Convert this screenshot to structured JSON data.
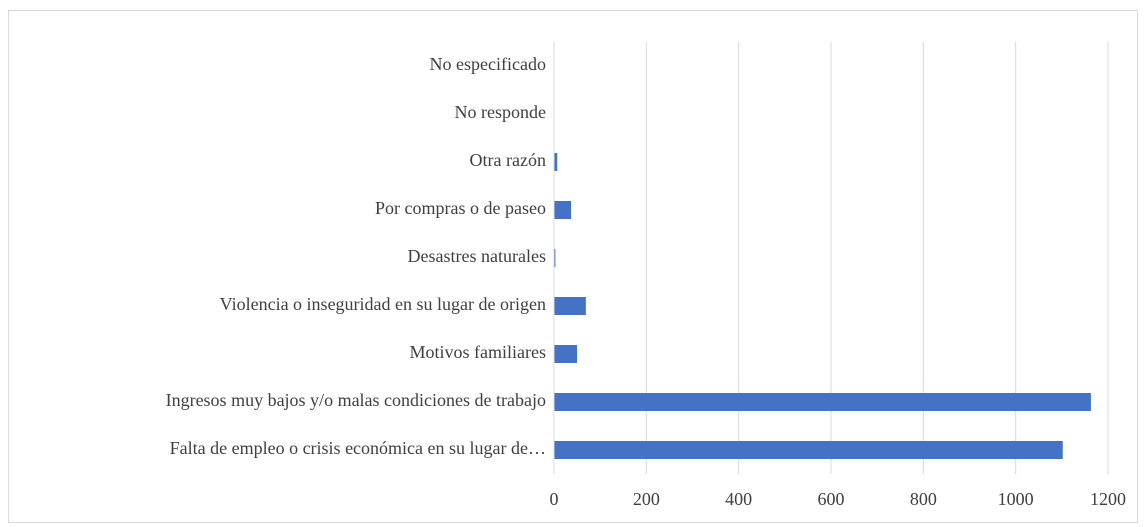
{
  "chart_data": {
    "type": "hbar",
    "categories": [
      "No especificado",
      "No responde",
      "Otra razón",
      "Por compras o de paseo",
      "Desastres naturales",
      "Violencia o inseguridad en su lugar de origen",
      "Motivos familiares",
      "Ingresos muy bajos y/o malas condiciones de trabajo",
      "Falta de empleo o crisis económica en su lugar de…"
    ],
    "values": [
      0,
      0,
      7,
      37,
      3,
      69,
      50,
      1163,
      1102
    ],
    "color": "#4472c4",
    "xlim": [
      0,
      1200
    ],
    "xticks": [
      0,
      200,
      400,
      600,
      800,
      1000,
      1200
    ],
    "grid": true
  }
}
